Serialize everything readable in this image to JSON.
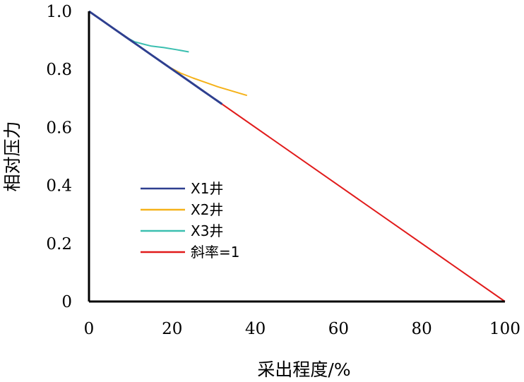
{
  "chart_data": {
    "type": "line",
    "xlabel": "采出程度/%",
    "ylabel": "相对压力",
    "xlim": [
      0,
      100
    ],
    "ylim": [
      0,
      1.0
    ],
    "x_ticks": [
      0,
      20,
      40,
      60,
      80,
      100
    ],
    "y_ticks": [
      0,
      0.2,
      0.4,
      0.6,
      0.8,
      1.0
    ],
    "x_tick_labels": [
      "0",
      "20",
      "40",
      "60",
      "80",
      "100"
    ],
    "y_tick_labels": [
      "0",
      "0.2",
      "0.4",
      "0.6",
      "0.8",
      "1.0"
    ],
    "grid": false,
    "legend_position": "center-left",
    "series": [
      {
        "name": "X1井",
        "color": "#2E3F8F",
        "x": [
          0,
          3,
          6,
          9,
          12,
          15,
          18,
          21,
          24,
          27,
          29,
          30,
          31,
          32
        ],
        "y": [
          1.0,
          0.97,
          0.94,
          0.91,
          0.88,
          0.85,
          0.82,
          0.79,
          0.76,
          0.73,
          0.71,
          0.7,
          0.69,
          0.68
        ]
      },
      {
        "name": "X2井",
        "color": "#F5B21A",
        "x": [
          0,
          5,
          10,
          15,
          19,
          22,
          25,
          28,
          31,
          34,
          38
        ],
        "y": [
          1.0,
          0.95,
          0.9,
          0.85,
          0.81,
          0.787,
          0.77,
          0.755,
          0.74,
          0.727,
          0.71
        ]
      },
      {
        "name": "X3井",
        "color": "#3BBFB0",
        "x": [
          0,
          3,
          6,
          9,
          11,
          13,
          15,
          18,
          21,
          24
        ],
        "y": [
          1.0,
          0.97,
          0.94,
          0.91,
          0.895,
          0.887,
          0.88,
          0.875,
          0.868,
          0.86
        ]
      },
      {
        "name": "斜率=1",
        "color": "#E11B1B",
        "x": [
          32,
          100
        ],
        "y": [
          0.68,
          0.0
        ]
      }
    ]
  }
}
